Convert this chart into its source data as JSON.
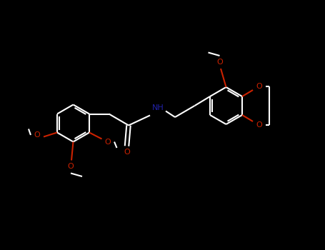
{
  "bg_color": "#000000",
  "bond_color": "#ffffff",
  "o_color": "#cc2200",
  "n_color": "#2222aa",
  "bond_width": 1.5,
  "figsize": [
    4.55,
    3.5
  ],
  "dpi": 100,
  "xlim": [
    0,
    9.1
  ],
  "ylim": [
    0,
    7.0
  ]
}
